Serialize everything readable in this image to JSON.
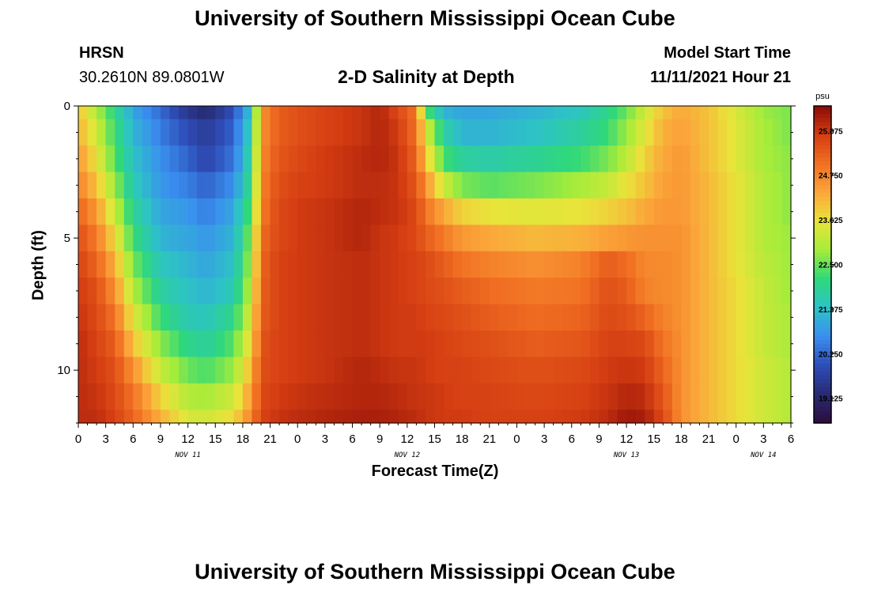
{
  "header": {
    "title": "University of Southern Mississippi Ocean Cube",
    "station": "HRSN",
    "location": "30.2610N  89.0801W",
    "subtitle": "2-D Salinity at Depth",
    "model_label": "Model Start Time",
    "model_time": "11/11/2021 Hour 21"
  },
  "footer": {
    "title": "University of Southern Mississippi Ocean Cube"
  },
  "colors": {
    "colormap": [
      "#2d0d3b",
      "#282b73",
      "#2e4db8",
      "#3a8ff0",
      "#2dc3c6",
      "#2fd87a",
      "#a6ec3a",
      "#e9e43a",
      "#fba63a",
      "#f16f22",
      "#d43d12",
      "#8a0a07"
    ]
  },
  "chart_data": {
    "type": "heatmap",
    "title": "2-D Salinity at Depth",
    "xlabel": "Forecast Time(Z)",
    "ylabel": "Depth (ft)",
    "units": "psu",
    "x_hours_from_nov11_00z": [
      0,
      78
    ],
    "x_tick_step_hours": 3,
    "x_tick_labels": [
      "0",
      "3",
      "6",
      "9",
      "12",
      "15",
      "18",
      "21",
      "0",
      "3",
      "6",
      "9",
      "12",
      "15",
      "18",
      "21",
      "0",
      "3",
      "6",
      "9",
      "12",
      "15",
      "18",
      "21",
      "0",
      "3",
      "6"
    ],
    "day_labels": [
      {
        "label": "NOV 11",
        "hour": 12
      },
      {
        "label": "NOV 12",
        "hour": 36
      },
      {
        "label": "NOV 13",
        "hour": 60
      },
      {
        "label": "NOV 14",
        "hour": 75
      }
    ],
    "y_range_ft": [
      0,
      12
    ],
    "y_tick_labels": [
      {
        "label": "0",
        "value": 0
      },
      {
        "label": "5",
        "value": 5
      },
      {
        "label": "10",
        "value": 10
      }
    ],
    "colorbar_range": [
      18.5,
      26.5
    ],
    "colorbar_ticks": [
      "19.125",
      "20.250",
      "21.375",
      "22.500",
      "23.625",
      "24.750",
      "25.875"
    ],
    "depth_levels_ft": [
      0,
      1,
      2,
      3,
      4,
      5,
      6,
      7,
      8,
      9,
      10,
      11,
      12
    ],
    "key_times_hours": [
      0,
      2,
      4,
      6,
      9,
      12,
      14,
      17,
      19,
      20,
      21,
      22,
      24,
      27,
      31,
      33,
      35,
      37,
      38,
      40,
      42,
      45,
      50,
      55,
      58,
      60,
      62,
      64,
      66,
      69,
      72,
      75,
      78
    ],
    "salinity_psu": [
      [
        24.0,
        23.0,
        22.0,
        21.0,
        20.3,
        19.5,
        19.2,
        20.0,
        21.5,
        24.5,
        25.0,
        25.3,
        25.5,
        25.7,
        25.9,
        26.1,
        25.6,
        25.0,
        22.5,
        21.2,
        21.0,
        21.0,
        21.2,
        21.5,
        22.0,
        22.5,
        23.3,
        24.0,
        24.3,
        24.0,
        23.4,
        22.8,
        22.6
      ],
      [
        24.2,
        23.3,
        22.2,
        21.2,
        20.5,
        19.9,
        19.6,
        20.2,
        21.8,
        24.5,
        25.0,
        25.3,
        25.5,
        25.7,
        25.9,
        26.1,
        25.8,
        25.0,
        23.5,
        21.8,
        21.2,
        21.2,
        21.4,
        21.8,
        22.2,
        22.8,
        23.5,
        24.2,
        24.4,
        24.0,
        23.5,
        22.9,
        22.6
      ],
      [
        24.5,
        23.6,
        22.4,
        21.4,
        20.7,
        20.2,
        19.8,
        20.4,
        22.0,
        24.6,
        25.1,
        25.4,
        25.6,
        25.8,
        26.0,
        26.1,
        25.9,
        25.2,
        24.0,
        22.3,
        21.8,
        21.7,
        21.9,
        22.2,
        22.6,
        23.1,
        23.8,
        24.3,
        24.5,
        24.0,
        23.5,
        22.9,
        22.7
      ],
      [
        24.8,
        24.0,
        22.8,
        21.6,
        20.8,
        20.5,
        20.2,
        20.7,
        22.2,
        24.7,
        25.2,
        25.5,
        25.7,
        25.8,
        26.0,
        26.0,
        25.9,
        25.4,
        24.6,
        23.3,
        22.6,
        22.4,
        22.6,
        22.9,
        23.2,
        23.6,
        24.0,
        24.4,
        24.5,
        24.1,
        23.6,
        23.0,
        22.7
      ],
      [
        25.2,
        24.5,
        23.2,
        21.9,
        21.0,
        20.8,
        20.5,
        21.0,
        22.5,
        24.8,
        25.3,
        25.6,
        25.8,
        25.9,
        26.1,
        26.0,
        25.9,
        25.6,
        25.0,
        24.3,
        23.8,
        23.6,
        23.5,
        23.6,
        23.8,
        24.0,
        24.3,
        24.5,
        24.5,
        24.1,
        23.6,
        23.0,
        22.7
      ],
      [
        25.5,
        24.9,
        23.7,
        22.2,
        21.2,
        21.0,
        20.8,
        21.2,
        22.8,
        25.0,
        25.4,
        25.6,
        25.8,
        25.9,
        26.1,
        25.9,
        25.8,
        25.6,
        25.3,
        24.9,
        24.5,
        24.3,
        24.1,
        24.2,
        24.4,
        24.5,
        24.6,
        24.6,
        24.6,
        24.1,
        23.6,
        23.0,
        22.8
      ],
      [
        25.7,
        25.2,
        24.2,
        22.6,
        21.5,
        21.2,
        21.0,
        21.4,
        23.0,
        25.1,
        25.5,
        25.7,
        25.8,
        25.9,
        26.0,
        25.9,
        25.8,
        25.7,
        25.6,
        25.3,
        25.0,
        24.8,
        24.6,
        24.8,
        25.3,
        25.1,
        24.7,
        24.7,
        24.6,
        24.1,
        23.6,
        23.1,
        22.8
      ],
      [
        25.8,
        25.5,
        24.6,
        23.0,
        21.8,
        21.4,
        21.2,
        21.6,
        23.2,
        25.2,
        25.5,
        25.7,
        25.8,
        25.9,
        26.0,
        25.9,
        25.8,
        25.7,
        25.6,
        25.5,
        25.3,
        25.1,
        24.9,
        25.0,
        25.5,
        25.3,
        24.8,
        24.7,
        24.6,
        24.1,
        23.7,
        23.2,
        22.8
      ],
      [
        25.9,
        25.6,
        25.0,
        23.5,
        22.2,
        21.6,
        21.5,
        22.0,
        23.5,
        25.3,
        25.5,
        25.7,
        25.8,
        25.9,
        26.0,
        25.9,
        25.8,
        25.8,
        25.7,
        25.6,
        25.5,
        25.3,
        25.1,
        25.2,
        25.6,
        25.5,
        25.2,
        24.8,
        24.6,
        24.1,
        23.7,
        23.2,
        22.9
      ],
      [
        26.0,
        25.7,
        25.3,
        24.0,
        22.7,
        22.0,
        21.8,
        22.4,
        23.8,
        25.4,
        25.6,
        25.7,
        25.8,
        25.9,
        26.0,
        25.9,
        25.8,
        25.8,
        25.8,
        25.7,
        25.6,
        25.5,
        25.3,
        25.4,
        25.7,
        25.7,
        25.6,
        25.0,
        24.6,
        24.1,
        23.7,
        23.2,
        22.9
      ],
      [
        26.0,
        25.8,
        25.5,
        24.6,
        23.2,
        22.5,
        22.3,
        22.8,
        24.2,
        25.5,
        25.6,
        25.7,
        25.8,
        25.9,
        26.1,
        26.0,
        25.9,
        25.9,
        25.8,
        25.7,
        25.7,
        25.6,
        25.5,
        25.6,
        25.8,
        25.9,
        25.8,
        25.2,
        24.6,
        24.1,
        23.7,
        23.3,
        23.0
      ],
      [
        26.0,
        25.9,
        25.6,
        25.0,
        23.8,
        23.0,
        22.9,
        23.3,
        24.5,
        25.6,
        25.7,
        25.8,
        25.9,
        26.0,
        26.1,
        26.1,
        26.0,
        25.9,
        25.9,
        25.8,
        25.7,
        25.7,
        25.6,
        25.7,
        25.9,
        26.1,
        26.0,
        25.4,
        24.6,
        24.1,
        23.7,
        23.3,
        23.0
      ],
      [
        26.0,
        26.0,
        25.7,
        25.2,
        24.2,
        23.4,
        23.3,
        23.7,
        24.8,
        25.7,
        25.8,
        25.9,
        26.0,
        26.1,
        26.2,
        26.2,
        26.1,
        26.0,
        25.9,
        25.8,
        25.8,
        25.7,
        25.7,
        25.8,
        26.0,
        26.3,
        26.2,
        25.6,
        24.6,
        24.1,
        23.7,
        23.3,
        23.0
      ]
    ]
  }
}
